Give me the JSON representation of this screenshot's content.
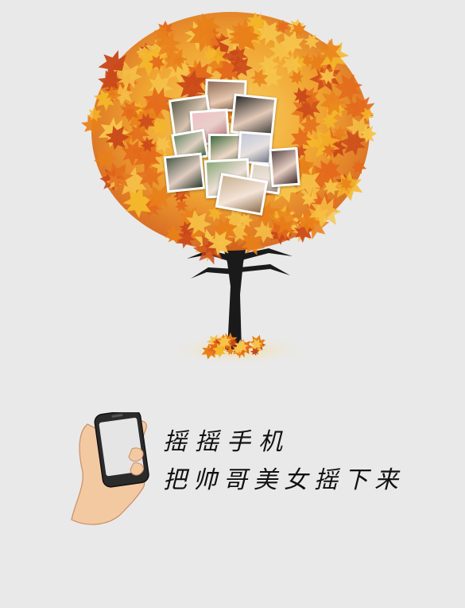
{
  "poster": {
    "slogan_line1": "摇摇手机",
    "slogan_line2": "把帅哥美女摇下来"
  },
  "icons": {
    "tree": "autumn-maple-tree-illustration",
    "photos": "photo-collage",
    "hand": "hand-holding-phone"
  },
  "colors": {
    "background": "#e9e9e9",
    "leaf_orange": "#e8801a",
    "leaf_yellow": "#f4b72a",
    "leaf_red": "#c9481a",
    "trunk": "#1a1a1a",
    "text": "#111111"
  }
}
